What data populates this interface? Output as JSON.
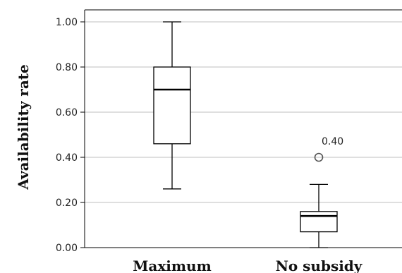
{
  "chart_data": {
    "type": "boxplot",
    "ylabel": "Availability rate",
    "ylim": [
      0,
      1
    ],
    "yticks": [
      "0.00",
      "0.20",
      "0.40",
      "0.60",
      "0.80",
      "1.00"
    ],
    "grid": "horizontal",
    "categories": [
      "Maximum",
      "No subsidy"
    ],
    "boxes": [
      {
        "category": "Maximum",
        "whisker_low": 0.26,
        "q1": 0.46,
        "median": 0.7,
        "q3": 0.8,
        "whisker_high": 1.0,
        "outliers": []
      },
      {
        "category": "No subsidy",
        "whisker_low": 0.0,
        "q1": 0.07,
        "median": 0.14,
        "q3": 0.16,
        "whisker_high": 0.28,
        "outliers": [
          {
            "value": 0.4,
            "label": "0.40"
          }
        ]
      }
    ],
    "colors": {
      "grid": "#bfbfbf",
      "box_fill": "#ffffff",
      "stroke": "#000000",
      "outlier": "#555555"
    }
  }
}
